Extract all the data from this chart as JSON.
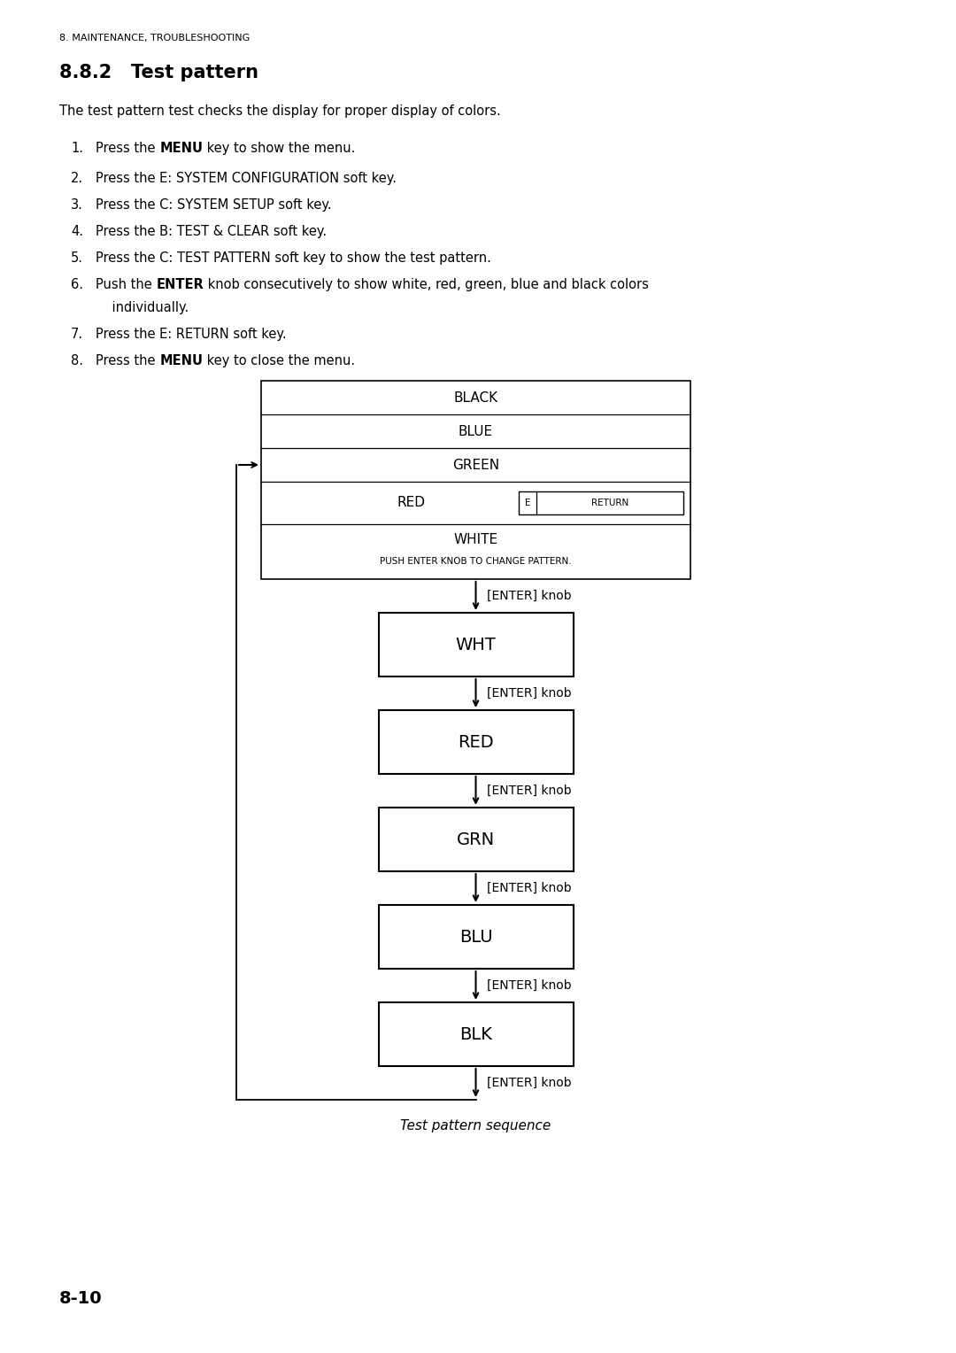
{
  "page_header": "8. MAINTENANCE, TROUBLESHOOTING",
  "section_number": "8.8.2",
  "section_title": "Test pattern",
  "intro_text": "The test pattern test checks the display for proper display of colors.",
  "steps": [
    [
      "Press the ",
      "MENU",
      " key to show the menu."
    ],
    [
      "Press the E: SYSTEM CONFIGURATION soft key."
    ],
    [
      "Press the C: SYSTEM SETUP soft key."
    ],
    [
      "Press the B: TEST & CLEAR soft key."
    ],
    [
      "Press the C: TEST PATTERN soft key to show the test pattern."
    ],
    [
      "Push the ",
      "ENTER",
      " knob consecutively to show white, red, green, blue and black colors"
    ],
    [
      "    individually."
    ],
    [
      "Press the E: RETURN soft key."
    ],
    [
      "Press the ",
      "MENU",
      " key to close the menu."
    ]
  ],
  "step_numbers": [
    1,
    2,
    3,
    4,
    5,
    6,
    6,
    7,
    8
  ],
  "menu_rows": [
    "BLACK",
    "BLUE",
    "GREEN",
    "RED",
    "WHITE"
  ],
  "white_subtext": "PUSH ENTER KNOB TO CHANGE PATTERN.",
  "flow_boxes": [
    "WHT",
    "RED",
    "GRN",
    "BLU",
    "BLK"
  ],
  "arrow_label": "[ENTER] knob",
  "caption": "Test pattern sequence",
  "page_number": "8-10",
  "bg_color": "#ffffff",
  "text_color": "#000000"
}
